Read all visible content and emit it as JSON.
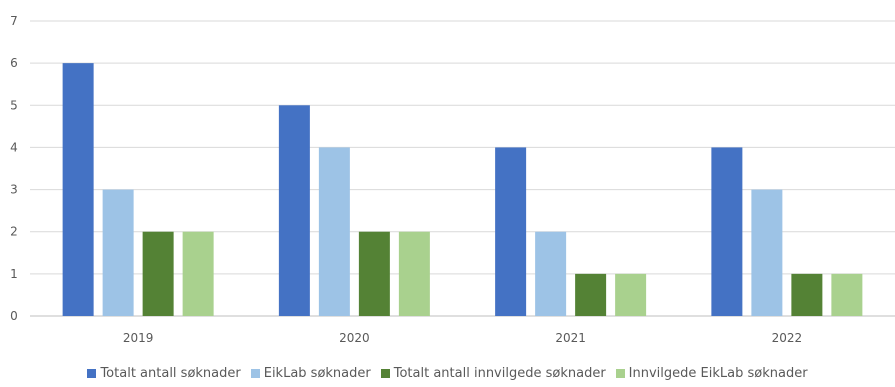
{
  "chart_data": {
    "type": "bar",
    "title": "",
    "xlabel": "",
    "ylabel": "",
    "categories": [
      "2019",
      "2020",
      "2021",
      "2022"
    ],
    "ylim": [
      0,
      7
    ],
    "yticks": [
      0,
      1,
      2,
      3,
      4,
      5,
      6,
      7
    ],
    "grid": true,
    "legend_position": "bottom",
    "series": [
      {
        "name": "Totalt antall søknader",
        "color": "#4472C4",
        "values": [
          6,
          5,
          4,
          4
        ]
      },
      {
        "name": "EikLab søknader",
        "color": "#9DC3E6",
        "values": [
          3,
          4,
          2,
          3
        ]
      },
      {
        "name": "Totalt antall innvilgede søknader",
        "color": "#548235",
        "values": [
          2,
          2,
          1,
          1
        ]
      },
      {
        "name": "Innvilgede EikLab søknader",
        "color": "#A9D18E",
        "values": [
          2,
          2,
          1,
          1
        ]
      }
    ]
  }
}
